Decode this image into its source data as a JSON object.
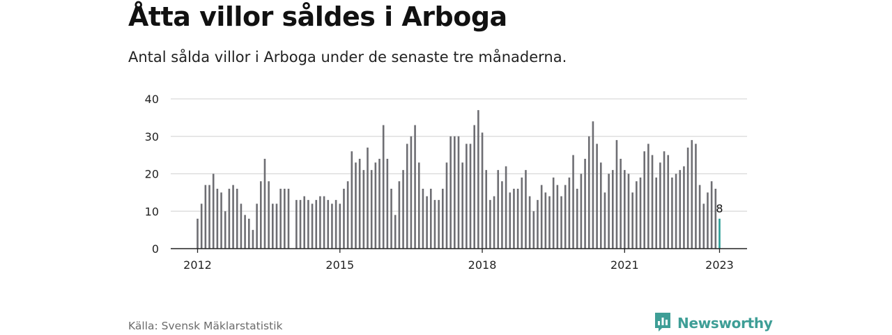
{
  "header": {
    "title": "Åtta villor såldes i Arboga",
    "subtitle": "Antal sålda villor i Arboga under de senaste tre månaderna."
  },
  "footer": {
    "source": "Källa: Svensk Mäklarstatistik",
    "brand": "Newsworthy"
  },
  "colors": {
    "bar": "#6e6e73",
    "highlight": "#2a9d96",
    "grid": "#d9d9d9",
    "axis": "#222222",
    "brand": "#3e9e96"
  },
  "icons": {
    "brand_logo": "bar-chart-badge-icon"
  },
  "chart_data": {
    "type": "bar",
    "x_start": "2012-01",
    "x_end": "2023-01",
    "frequency": "monthly",
    "values": [
      8,
      12,
      17,
      17,
      20,
      16,
      15,
      10,
      16,
      17,
      16,
      12,
      9,
      8,
      5,
      12,
      18,
      24,
      18,
      12,
      12,
      16,
      16,
      16,
      null,
      13,
      13,
      14,
      13,
      12,
      13,
      14,
      14,
      13,
      12,
      13,
      12,
      16,
      18,
      26,
      23,
      24,
      21,
      27,
      21,
      23,
      24,
      33,
      24,
      16,
      9,
      18,
      21,
      28,
      30,
      33,
      23,
      16,
      14,
      16,
      13,
      13,
      16,
      23,
      30,
      30,
      30,
      23,
      28,
      28,
      33,
      37,
      31,
      21,
      13,
      14,
      21,
      18,
      22,
      15,
      16,
      16,
      19,
      21,
      14,
      10,
      13,
      17,
      15,
      14,
      19,
      17,
      14,
      17,
      19,
      25,
      16,
      20,
      24,
      30,
      34,
      28,
      23,
      15,
      20,
      21,
      29,
      24,
      21,
      20,
      15,
      18,
      19,
      26,
      28,
      25,
      19,
      23,
      26,
      25,
      19,
      20,
      21,
      22,
      27,
      29,
      28,
      17,
      12,
      15,
      18,
      16,
      8
    ],
    "ylim": [
      0,
      40
    ],
    "yticks": [
      0,
      10,
      20,
      30,
      40
    ],
    "xticks": [
      "2012",
      "2015",
      "2018",
      "2021",
      "2023"
    ],
    "highlight_label": "8",
    "grid": true
  }
}
